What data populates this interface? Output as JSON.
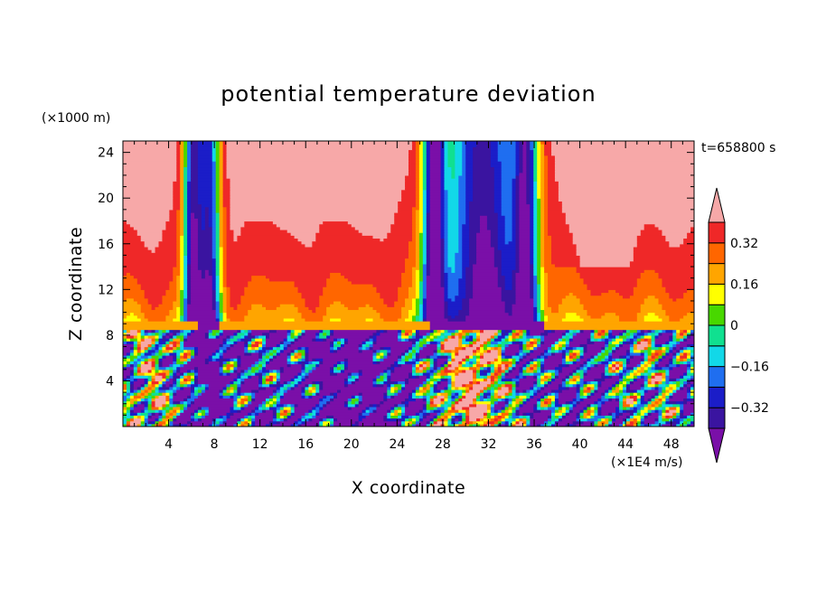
{
  "chart_data": {
    "type": "heatmap",
    "title": "potential temperature deviation",
    "xlabel": "X coordinate",
    "ylabel": "Z coordinate",
    "x_unit": "(×1E4 m/s)",
    "y_unit": "(×1000 m)",
    "time_label": "t=658800 s",
    "xlim": [
      0,
      50
    ],
    "ylim": [
      0,
      25
    ],
    "x_ticks": [
      4,
      8,
      12,
      16,
      20,
      24,
      28,
      32,
      36,
      40,
      44,
      48
    ],
    "y_ticks": [
      4,
      8,
      12,
      16,
      20,
      24
    ],
    "colorbar": {
      "levels": [
        -0.4,
        -0.32,
        -0.24,
        -0.16,
        -0.08,
        0,
        0.08,
        0.16,
        0.24,
        0.32,
        0.4
      ],
      "labeled_levels": [
        "0.32",
        "0.16",
        "0",
        "−0.16",
        "−0.32"
      ],
      "colors": [
        "#7a0fa8",
        "#3a14a0",
        "#1b1dc8",
        "#1f6ef0",
        "#12d8e8",
        "#10e090",
        "#48d800",
        "#ffff00",
        "#ffa500",
        "#ff6600",
        "#ef2828",
        "#f7a8a8"
      ],
      "extend": "both"
    },
    "regions": [
      {
        "name": "upper layer",
        "z_range": [
          9,
          25
        ],
        "pattern": "vertical bands"
      },
      {
        "name": "lower layer",
        "z_range": [
          0,
          8.5
        ],
        "pattern": "turbulent filaments"
      }
    ]
  }
}
